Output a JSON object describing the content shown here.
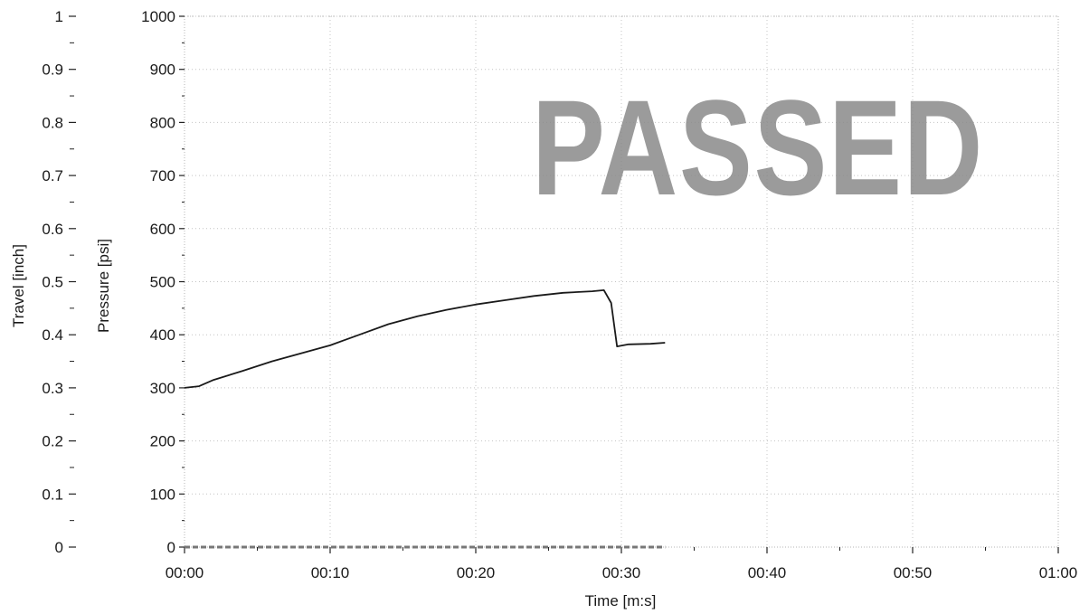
{
  "chart_data": {
    "type": "line",
    "title": "",
    "xlabel": "Time [m:s]",
    "ylabel_left_outer": "Travel [inch]",
    "ylabel_left_inner": "Pressure [psi]",
    "x_ticks": [
      "00:00",
      "00:10",
      "00:20",
      "00:30",
      "00:40",
      "00:50",
      "01:00"
    ],
    "x_range_seconds": [
      0,
      60
    ],
    "pressure_ticks": [
      "0",
      "100",
      "200",
      "300",
      "400",
      "500",
      "600",
      "700",
      "800",
      "900",
      "1000"
    ],
    "pressure_range": [
      0,
      1000
    ],
    "travel_ticks": [
      "0",
      "0.1",
      "0.2",
      "0.3",
      "0.4",
      "0.5",
      "0.6",
      "0.7",
      "0.8",
      "0.9",
      "1"
    ],
    "travel_range": [
      0,
      1
    ],
    "grid": true,
    "series": [
      {
        "axis": "pressure",
        "color": "#1a1a1a",
        "points": [
          [
            "00:00",
            300
          ],
          [
            "00:01",
            303
          ],
          [
            "00:02",
            315
          ],
          [
            "00:04",
            332
          ],
          [
            "00:06",
            350
          ],
          [
            "00:08",
            365
          ],
          [
            "00:10",
            380
          ],
          [
            "00:12",
            400
          ],
          [
            "00:14",
            420
          ],
          [
            "00:16",
            435
          ],
          [
            "00:18",
            447
          ],
          [
            "00:20",
            457
          ],
          [
            "00:22",
            465
          ],
          [
            "00:24",
            473
          ],
          [
            "00:26",
            479
          ],
          [
            "00:28",
            482
          ],
          [
            "00:28.8",
            484
          ],
          [
            "00:29.3",
            460
          ],
          [
            "00:29.7",
            378
          ],
          [
            "00:30.5",
            382
          ],
          [
            "00:32",
            383
          ],
          [
            "00:33",
            385
          ]
        ]
      },
      {
        "axis": "travel",
        "color": "#777777",
        "points": [
          [
            "00:00",
            0
          ],
          [
            "00:33",
            0
          ]
        ]
      }
    ],
    "stamp_text": "PASSED"
  }
}
